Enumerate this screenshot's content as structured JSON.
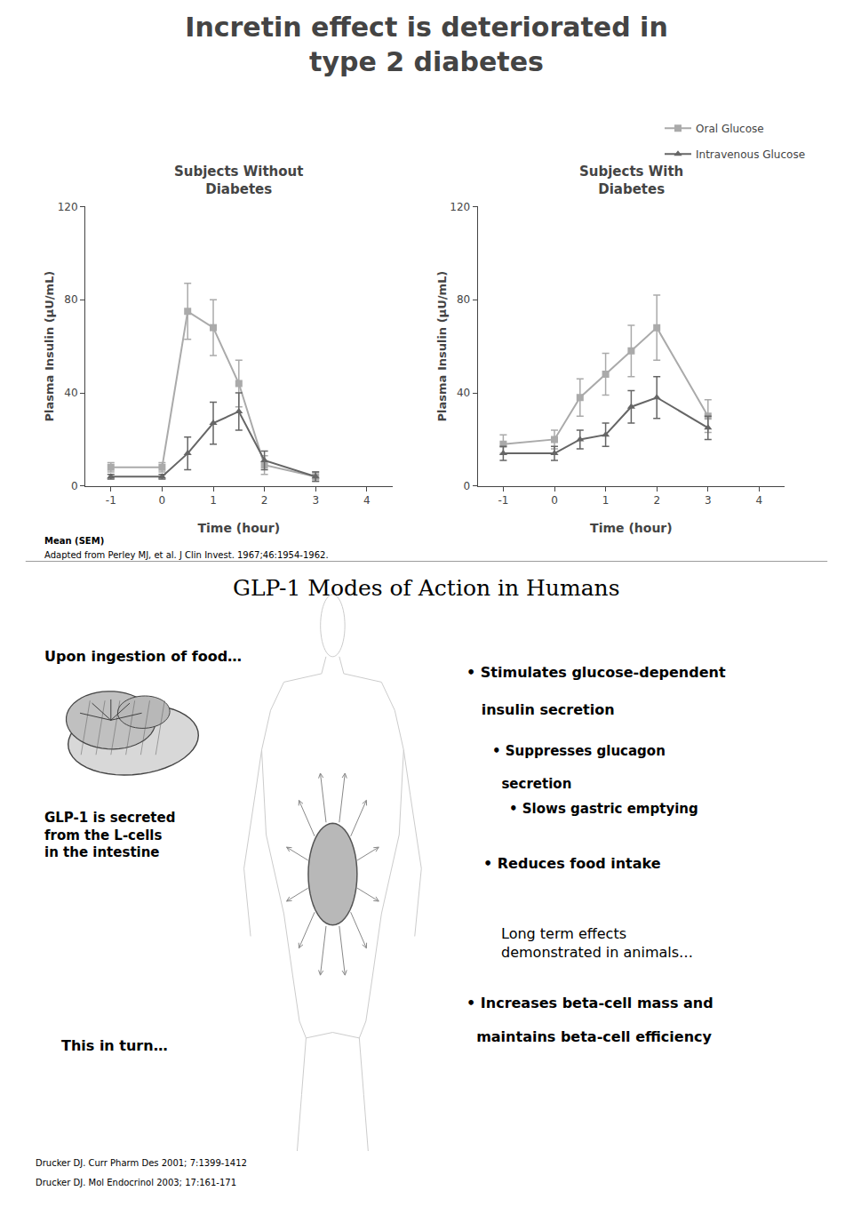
{
  "title": "Incretin effect is deteriorated in\ntype 2 diabetes",
  "chart_data": [
    {
      "type": "line",
      "title": "Subjects Without\nDiabetes",
      "xlabel": "Time (hour)",
      "ylabel": "Plasma Insulin (μU/mL)",
      "x": [
        -1,
        0,
        0.5,
        1,
        1.5,
        2,
        3
      ],
      "series": [
        {
          "name": "Oral Glucose",
          "color": "#aaaaaa",
          "marker": "square",
          "values": [
            8,
            8,
            75,
            68,
            44,
            9,
            4
          ],
          "errors": [
            2,
            2,
            12,
            12,
            10,
            4,
            2
          ]
        },
        {
          "name": "Intravenous Glucose",
          "color": "#666666",
          "marker": "triangle-up",
          "values": [
            4,
            4,
            14,
            27,
            32,
            11,
            4
          ],
          "errors": [
            1,
            1,
            7,
            9,
            8,
            4,
            2
          ]
        }
      ],
      "xlim": [
        -1.5,
        4.5
      ],
      "xticks": [
        -1,
        0,
        1,
        2,
        3,
        4
      ],
      "ylim": [
        0,
        120
      ],
      "yticks": [
        0,
        40,
        80,
        120
      ],
      "grid": false,
      "legend": "upper right"
    },
    {
      "type": "line",
      "title": "Subjects With\nDiabetes",
      "xlabel": "Time (hour)",
      "ylabel": "Plasma Insulin (μU/mL)",
      "x": [
        -1,
        0,
        0.5,
        1,
        1.5,
        2,
        3
      ],
      "series": [
        {
          "name": "Oral Glucose",
          "color": "#aaaaaa",
          "marker": "square",
          "values": [
            18,
            20,
            38,
            48,
            58,
            68,
            30
          ],
          "errors": [
            4,
            4,
            8,
            9,
            11,
            14,
            7
          ]
        },
        {
          "name": "Intravenous Glucose",
          "color": "#666666",
          "marker": "triangle-up",
          "values": [
            14,
            14,
            20,
            22,
            34,
            38,
            25
          ],
          "errors": [
            3,
            3,
            4,
            5,
            7,
            9,
            5
          ]
        }
      ],
      "xlim": [
        -1.5,
        4.5
      ],
      "xticks": [
        -1,
        0,
        1,
        2,
        3,
        4
      ],
      "ylim": [
        0,
        120
      ],
      "yticks": [
        0,
        40,
        80,
        120
      ],
      "grid": false
    }
  ],
  "annotations": [
    "Mean (SEM)",
    "Adapted from Perley MJ, et al. J Clin Invest. 1967;46:1954-1962.",
    "GLP-1 Modes of Action in Humans",
    "Upon ingestion of food…",
    "GLP-1 is secreted\nfrom the L-cells\nin the intestine",
    "This in turn…",
    "• Stimulates glucose-dependent",
    "   insulin secretion",
    "• Suppresses glucagon",
    "  secretion",
    "• Slows gastric emptying",
    "• Reduces food intake",
    "Long term effects\ndemonstrated in animals…",
    "• Increases beta-cell mass and",
    "  maintains beta-cell efficiency",
    "Drucker DJ. Curr Pharm Des 2001; 7:1399-1412",
    "Drucker DJ. Mol Endocrinol 2003; 17:161-171"
  ]
}
